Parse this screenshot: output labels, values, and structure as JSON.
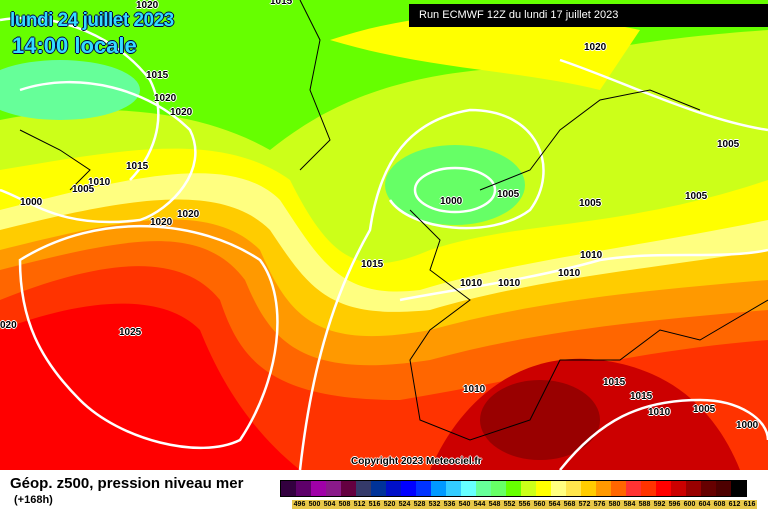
{
  "header": {
    "date": "lundi 24 juillet 2023",
    "time": "14:00 locale",
    "run": "Run ECMWF 12Z du lundi 17 juillet 2023"
  },
  "map": {
    "copyright": "Copyright 2023 Meteociel.fr",
    "pressure_labels": [
      "1020",
      "1015",
      "1020",
      "1015",
      "1020",
      "1020",
      "1015",
      "1010",
      "1005",
      "1000",
      "1020",
      "1020",
      "1000",
      "1005",
      "1005",
      "1005",
      "1005",
      "1015",
      "1010",
      "1010",
      "1010",
      "1010",
      "1025",
      "020",
      "1010",
      "1015",
      "1015",
      "1010",
      "1005",
      "1000"
    ]
  },
  "footer": {
    "title": "Géop. z500, pression niveau mer",
    "subtitle": "(+168h)"
  },
  "legend": {
    "colors": [
      "#33003f",
      "#5e006a",
      "#a000a8",
      "#8a1a8a",
      "#640040",
      "#353a6a",
      "#003399",
      "#0010c8",
      "#0000ff",
      "#0033ff",
      "#0099ff",
      "#33ccff",
      "#66ffff",
      "#66ff99",
      "#66ff66",
      "#66ff00",
      "#ccff19",
      "#ffff00",
      "#ffff80",
      "#ffe64d",
      "#ffcc00",
      "#ff9900",
      "#ff6600",
      "#ff3333",
      "#ff3300",
      "#ff0000",
      "#cc0000",
      "#990000",
      "#660000",
      "#4d0000",
      "#000000"
    ],
    "labels": [
      "496",
      "500",
      "504",
      "508",
      "512",
      "516",
      "520",
      "524",
      "528",
      "532",
      "536",
      "540",
      "544",
      "548",
      "552",
      "556",
      "560",
      "564",
      "568",
      "572",
      "576",
      "580",
      "584",
      "588",
      "592",
      "596",
      "600",
      "604",
      "608",
      "612",
      "616"
    ]
  }
}
